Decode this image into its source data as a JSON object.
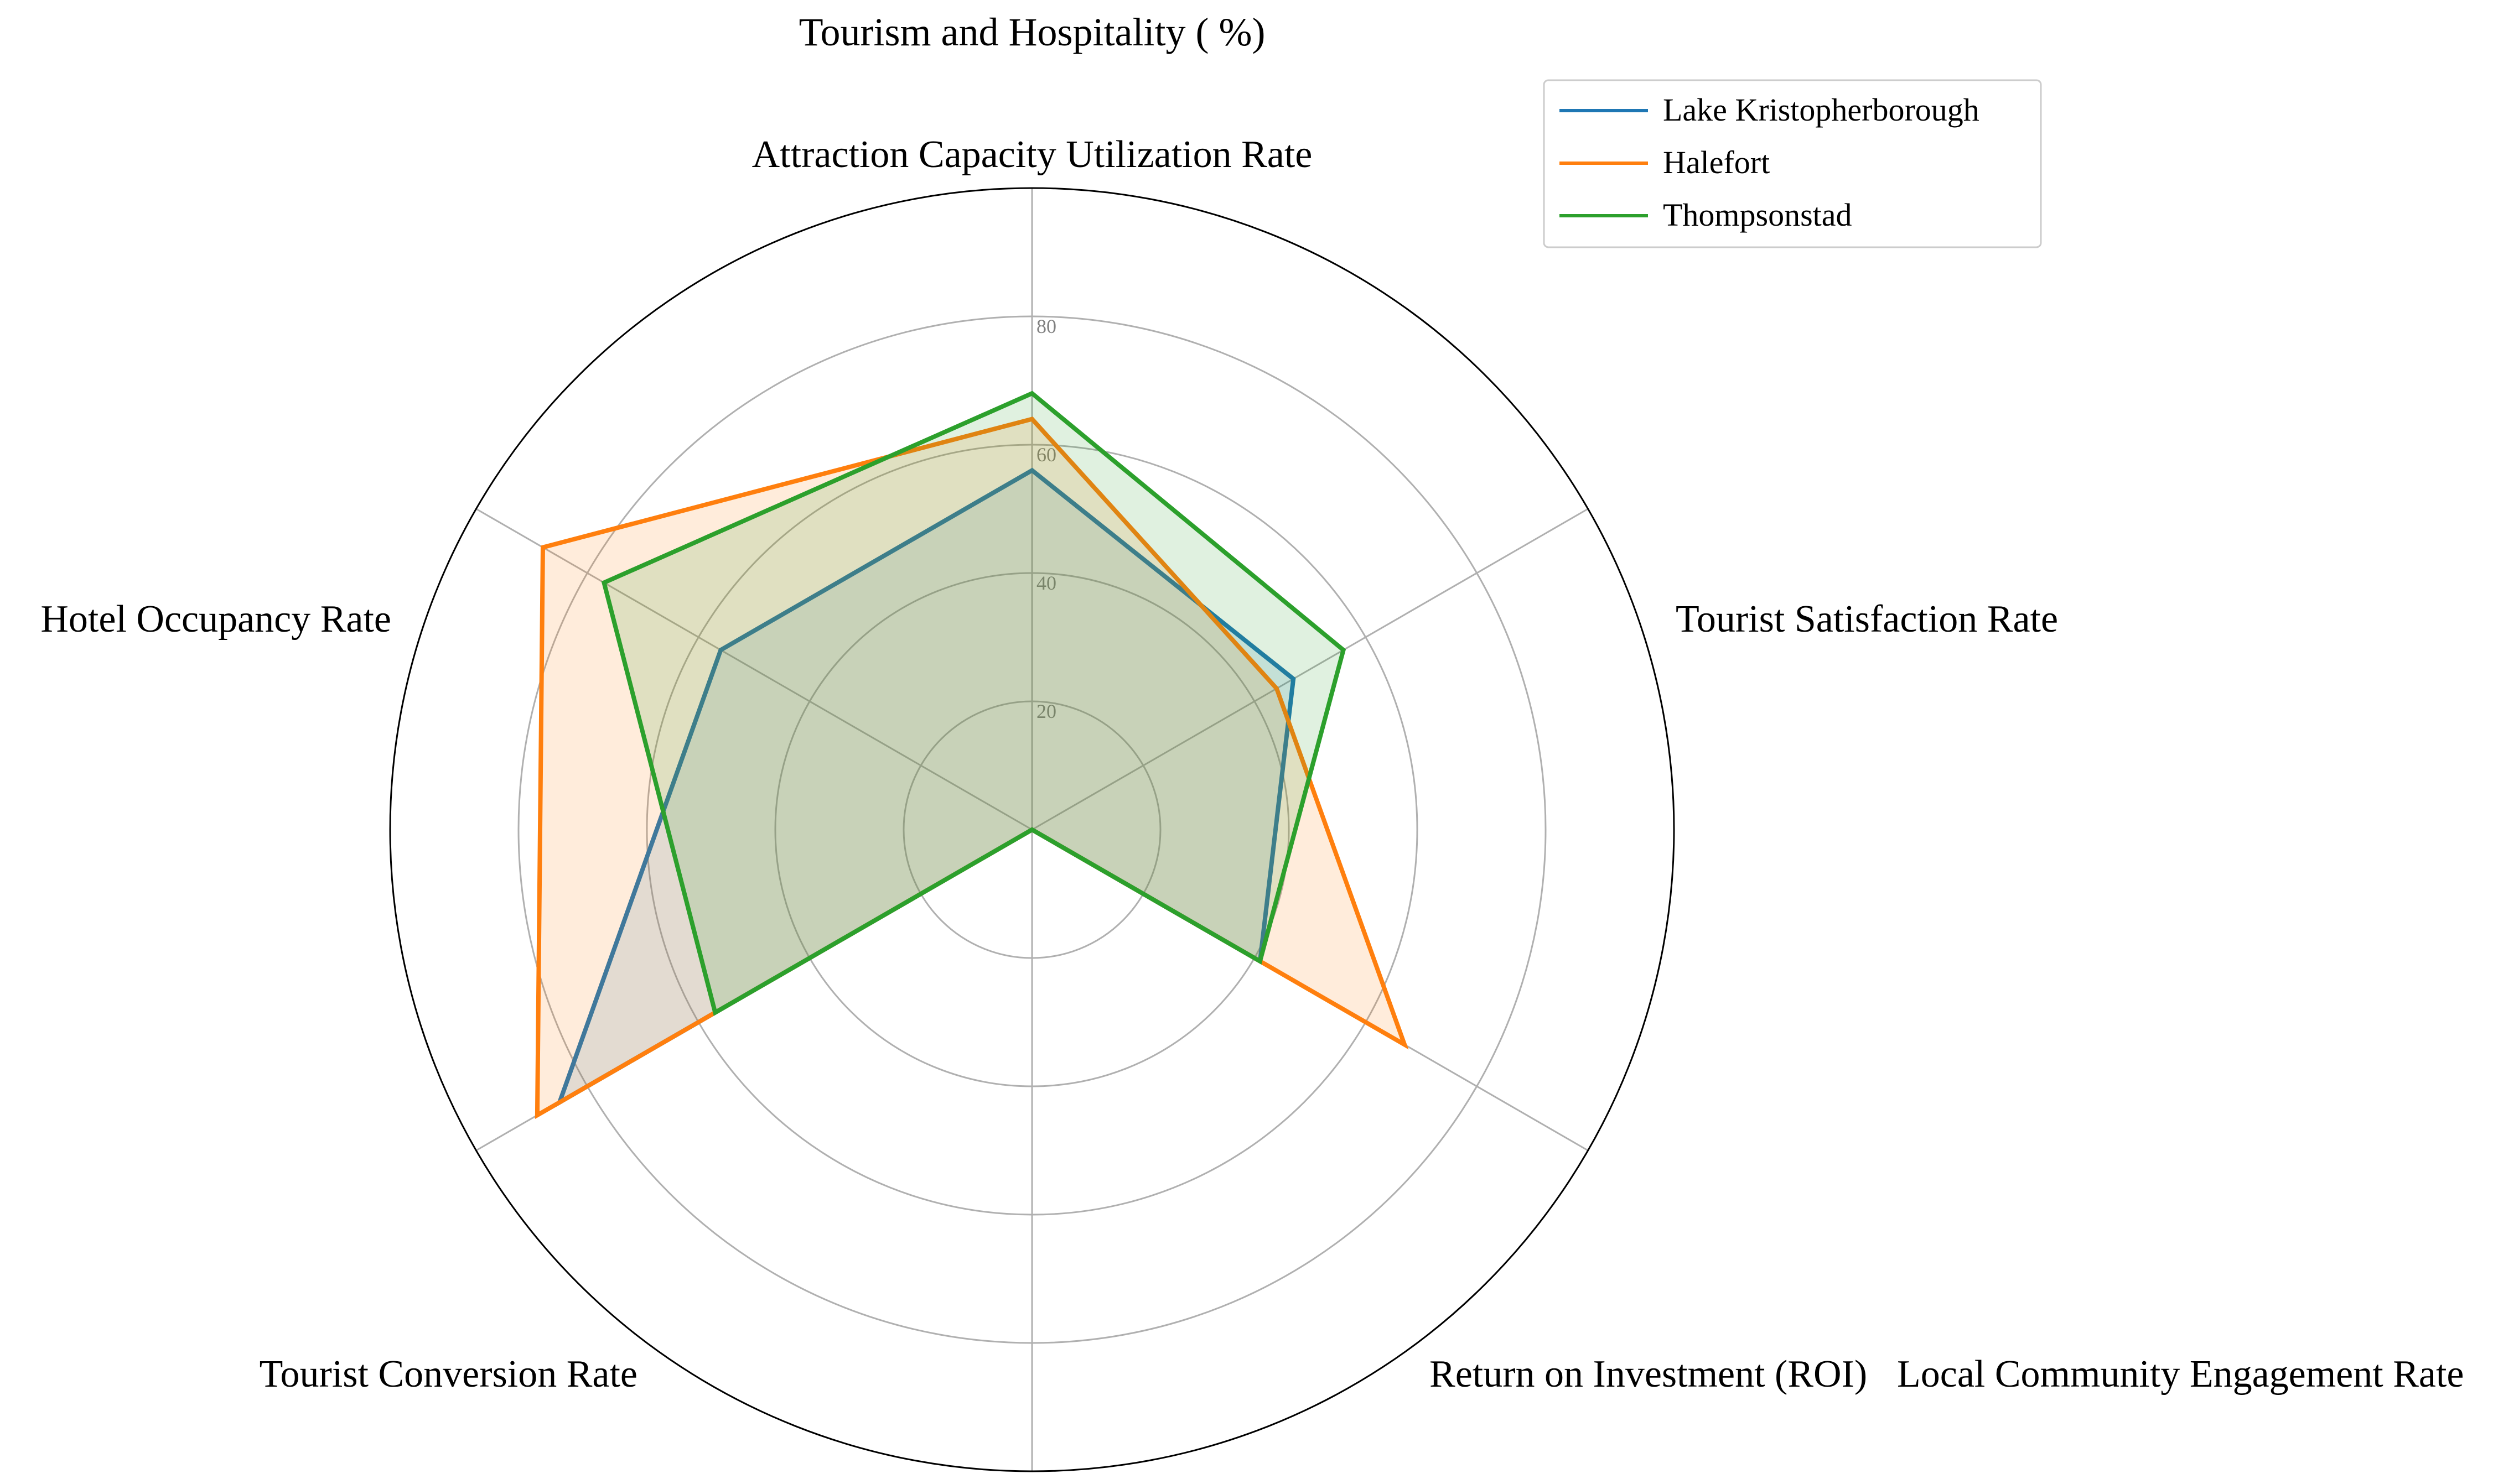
{
  "chart_data": {
    "type": "radar",
    "title": "Tourism and Hospitality ( %)",
    "axes": [
      "Attraction Capacity Utilization Rate",
      "Tourist Satisfaction Rate",
      "Local Community Engagement Rate",
      "Return on Investment (ROI)",
      "Tourist Conversion Rate",
      "Hotel Occupancy Rate"
    ],
    "rlim": [
      0,
      100
    ],
    "r_ticks": [
      20,
      40,
      60,
      80
    ],
    "grid": true,
    "legend_position": "top-right",
    "series": [
      {
        "name": "Lake Kristopherborough",
        "color": "#1f77b4",
        "values": [
          56,
          47,
          41,
          0,
          85,
          56
        ]
      },
      {
        "name": "Halefort",
        "color": "#ff7f0e",
        "values": [
          64,
          44,
          67,
          0,
          89,
          88
        ]
      },
      {
        "name": "Thompsonstad",
        "color": "#2ca02c",
        "values": [
          68,
          56,
          41,
          0,
          57,
          77
        ]
      }
    ]
  }
}
